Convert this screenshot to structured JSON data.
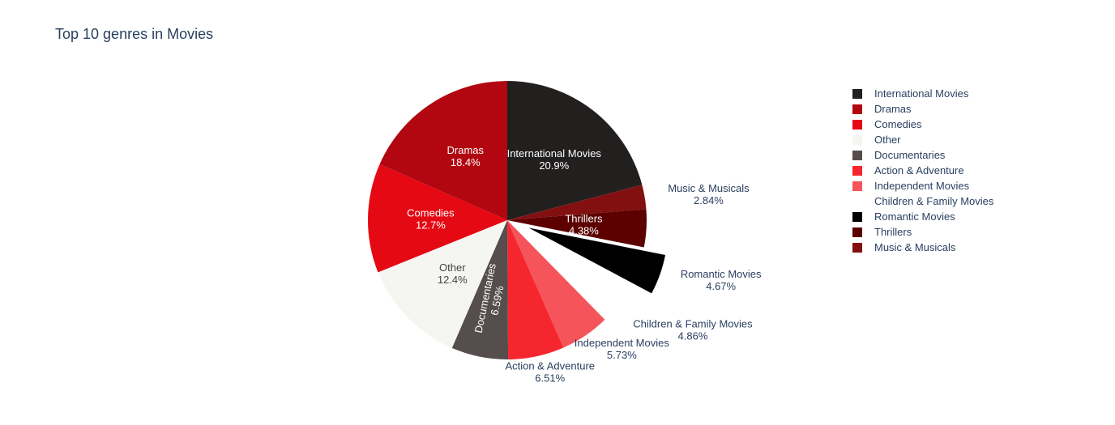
{
  "chart_data": {
    "type": "pie",
    "title": "Top 10 genres in Movies",
    "slices": [
      {
        "label": "International Movies",
        "value": 20.9,
        "display": "20.9%",
        "color": "#221f1f",
        "text_inside": true,
        "text_color": "#ffffff"
      },
      {
        "label": "Music & Musicals",
        "value": 2.84,
        "display": "2.84%",
        "color": "#831010",
        "text_inside": false
      },
      {
        "label": "Thrillers",
        "value": 4.38,
        "display": "4.38%",
        "color": "#5c0000",
        "text_inside": true,
        "text_color": "#ffffff"
      },
      {
        "label": "Romantic Movies",
        "value": 4.67,
        "display": "4.67%",
        "color": "#000000",
        "text_inside": false,
        "pulled": true
      },
      {
        "label": "Children & Family Movies",
        "value": 4.86,
        "display": "4.86%",
        "color": "#ffffff",
        "text_inside": false,
        "pulled": true
      },
      {
        "label": "Independent Movies",
        "value": 5.73,
        "display": "5.73%",
        "color": "#f5545b",
        "text_inside": false
      },
      {
        "label": "Action & Adventure",
        "value": 6.51,
        "display": "6.51%",
        "color": "#f6262f",
        "text_inside": false
      },
      {
        "label": "Documentaries",
        "value": 6.59,
        "display": "6.59%",
        "color": "#564d4d",
        "text_inside": true,
        "text_color": "#ffffff",
        "radial_text": true
      },
      {
        "label": "Other",
        "value": 12.4,
        "display": "12.4%",
        "color": "#f5f5f1",
        "text_inside": true,
        "text_color": "#444444"
      },
      {
        "label": "Comedies",
        "value": 12.7,
        "display": "12.7%",
        "color": "#e50914",
        "text_inside": true,
        "text_color": "#ffffff"
      },
      {
        "label": "Dramas",
        "value": 18.4,
        "display": "18.4%",
        "color": "#b20710",
        "text_inside": true,
        "text_color": "#ffffff"
      }
    ],
    "legend": [
      {
        "label": "International Movies",
        "color": "#221f1f"
      },
      {
        "label": "Dramas",
        "color": "#b20710"
      },
      {
        "label": "Comedies",
        "color": "#e50914"
      },
      {
        "label": "Other",
        "color": "#f5f5f1"
      },
      {
        "label": "Documentaries",
        "color": "#564d4d"
      },
      {
        "label": "Action & Adventure",
        "color": "#f6262f"
      },
      {
        "label": "Independent Movies",
        "color": "#f5545b"
      },
      {
        "label": "Children & Family Movies",
        "color": "#ffffff"
      },
      {
        "label": "Romantic Movies",
        "color": "#000000"
      },
      {
        "label": "Thrillers",
        "color": "#5c0000"
      },
      {
        "label": "Music & Musicals",
        "color": "#831010"
      }
    ],
    "legend_position": "right",
    "direction": "clockwise",
    "start_angle": "top"
  }
}
